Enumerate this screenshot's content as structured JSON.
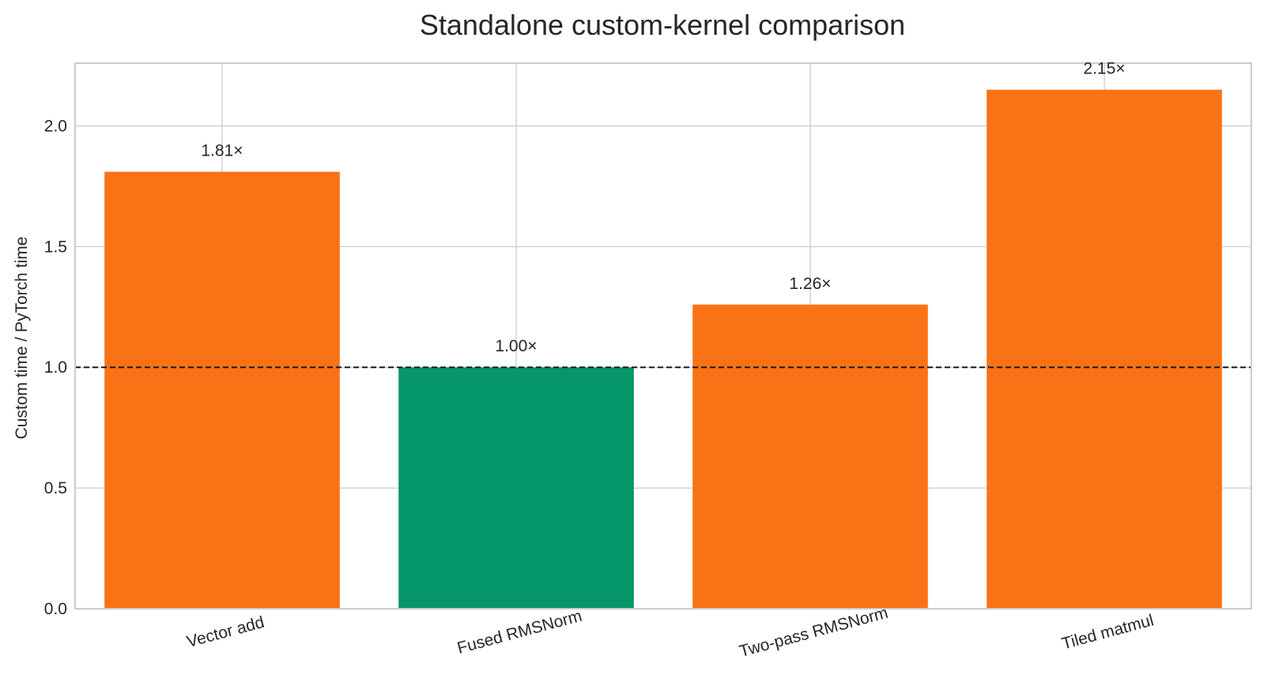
{
  "chart_data": {
    "type": "bar",
    "title": "Standalone custom-kernel comparison",
    "xlabel": "",
    "ylabel": "Custom time / PyTorch time",
    "categories": [
      "Vector add",
      "Fused RMSNorm",
      "Two-pass RMSNorm",
      "Tiled matmul"
    ],
    "values": [
      1.81,
      1.0,
      1.26,
      2.15
    ],
    "data_labels": [
      "1.81×",
      "1.00×",
      "1.26×",
      "2.15×"
    ],
    "bar_colors": [
      "#f97316",
      "#059669",
      "#f97316",
      "#f97316"
    ],
    "ylim": [
      0,
      2.26
    ],
    "yticks": [
      0.0,
      0.5,
      1.0,
      1.5,
      2.0
    ],
    "ytick_labels": [
      "0.0",
      "0.5",
      "1.0",
      "1.5",
      "2.0"
    ],
    "reference_line": {
      "y": 1.0,
      "style": "dashed",
      "color": "#1a1a1a"
    },
    "grid": true,
    "legend": "none"
  }
}
